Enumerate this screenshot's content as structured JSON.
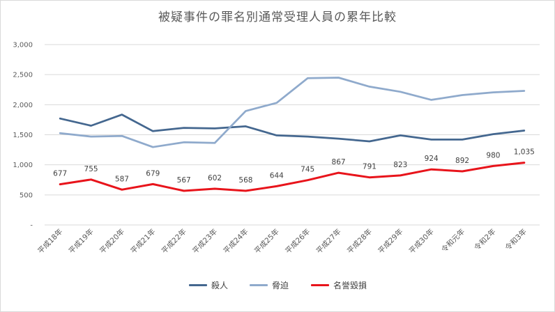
{
  "chart_data": {
    "type": "line",
    "title": "被疑事件の罪名別通常受理人員の累年比較",
    "xlabel": "",
    "ylabel": "",
    "ylim": [
      0,
      3000
    ],
    "yticks": [
      0,
      500,
      1000,
      1500,
      2000,
      2500,
      3000
    ],
    "ytick_labels": [
      "-",
      "500",
      "1,000",
      "1,500",
      "2,000",
      "2,500",
      "3,000"
    ],
    "grid": true,
    "legend_position": "bottom",
    "categories": [
      "平成18年",
      "平成19年",
      "平成20年",
      "平成21年",
      "平成22年",
      "平成23年",
      "平成24年",
      "平成25年",
      "平成26年",
      "平成27年",
      "平成28年",
      "平成29年",
      "平成30年",
      "令和元年",
      "令和2年",
      "令和3年"
    ],
    "series": [
      {
        "name": "殺人",
        "color": "#44678f",
        "values": [
          1770,
          1650,
          1835,
          1560,
          1615,
          1605,
          1640,
          1490,
          1470,
          1435,
          1390,
          1490,
          1420,
          1420,
          1510,
          1570
        ]
      },
      {
        "name": "脅迫",
        "color": "#8faacc",
        "values": [
          1525,
          1470,
          1480,
          1295,
          1375,
          1365,
          1895,
          2030,
          2440,
          2450,
          2300,
          2215,
          2080,
          2160,
          2205,
          2230
        ]
      },
      {
        "name": "名誉毀損",
        "color": "#e8141b",
        "values": [
          677,
          755,
          587,
          679,
          567,
          602,
          568,
          644,
          745,
          867,
          791,
          823,
          924,
          892,
          980,
          1035
        ],
        "data_labels": [
          "677",
          "755",
          "587",
          "679",
          "567",
          "602",
          "568",
          "644",
          "745",
          "867",
          "791",
          "823",
          "924",
          "892",
          "980",
          "1,035"
        ]
      }
    ]
  }
}
